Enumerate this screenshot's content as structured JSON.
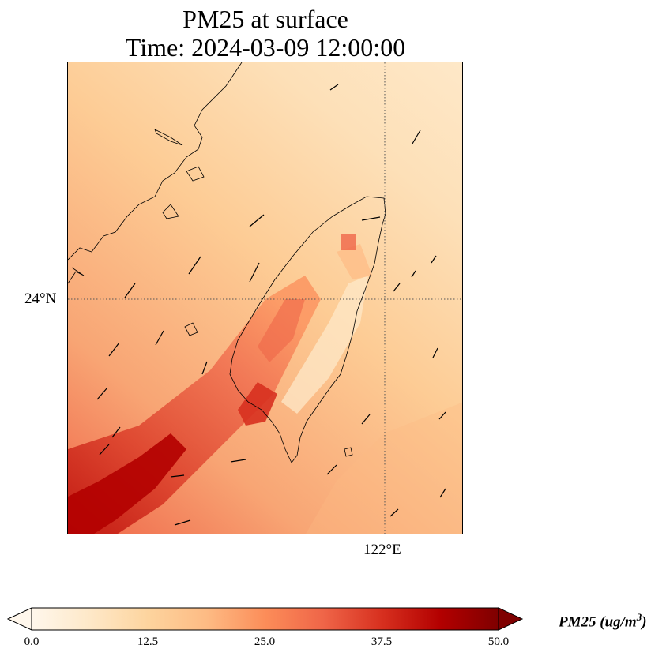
{
  "title": {
    "line1": "PM25 at surface",
    "line2": "Time: 2024-03-09 12:00:00"
  },
  "map": {
    "lat_label": "24°N",
    "lon_label": "122°E",
    "gridline_style": "dotted"
  },
  "colorbar": {
    "colormap": "OrRd",
    "min": 0.0,
    "max": 50.0,
    "extend": "both",
    "tick_labels": [
      "0.0",
      "12.5",
      "25.0",
      "37.5",
      "50.0"
    ],
    "label_text": "PM25 (ug/m",
    "label_superscript": "3",
    "label_close": ")",
    "colors": [
      "#fff7ec",
      "#fee8c8",
      "#fdd49e",
      "#fdbb84",
      "#fc8d59",
      "#ef6548",
      "#d7301f",
      "#b30000",
      "#7f0000"
    ]
  }
}
